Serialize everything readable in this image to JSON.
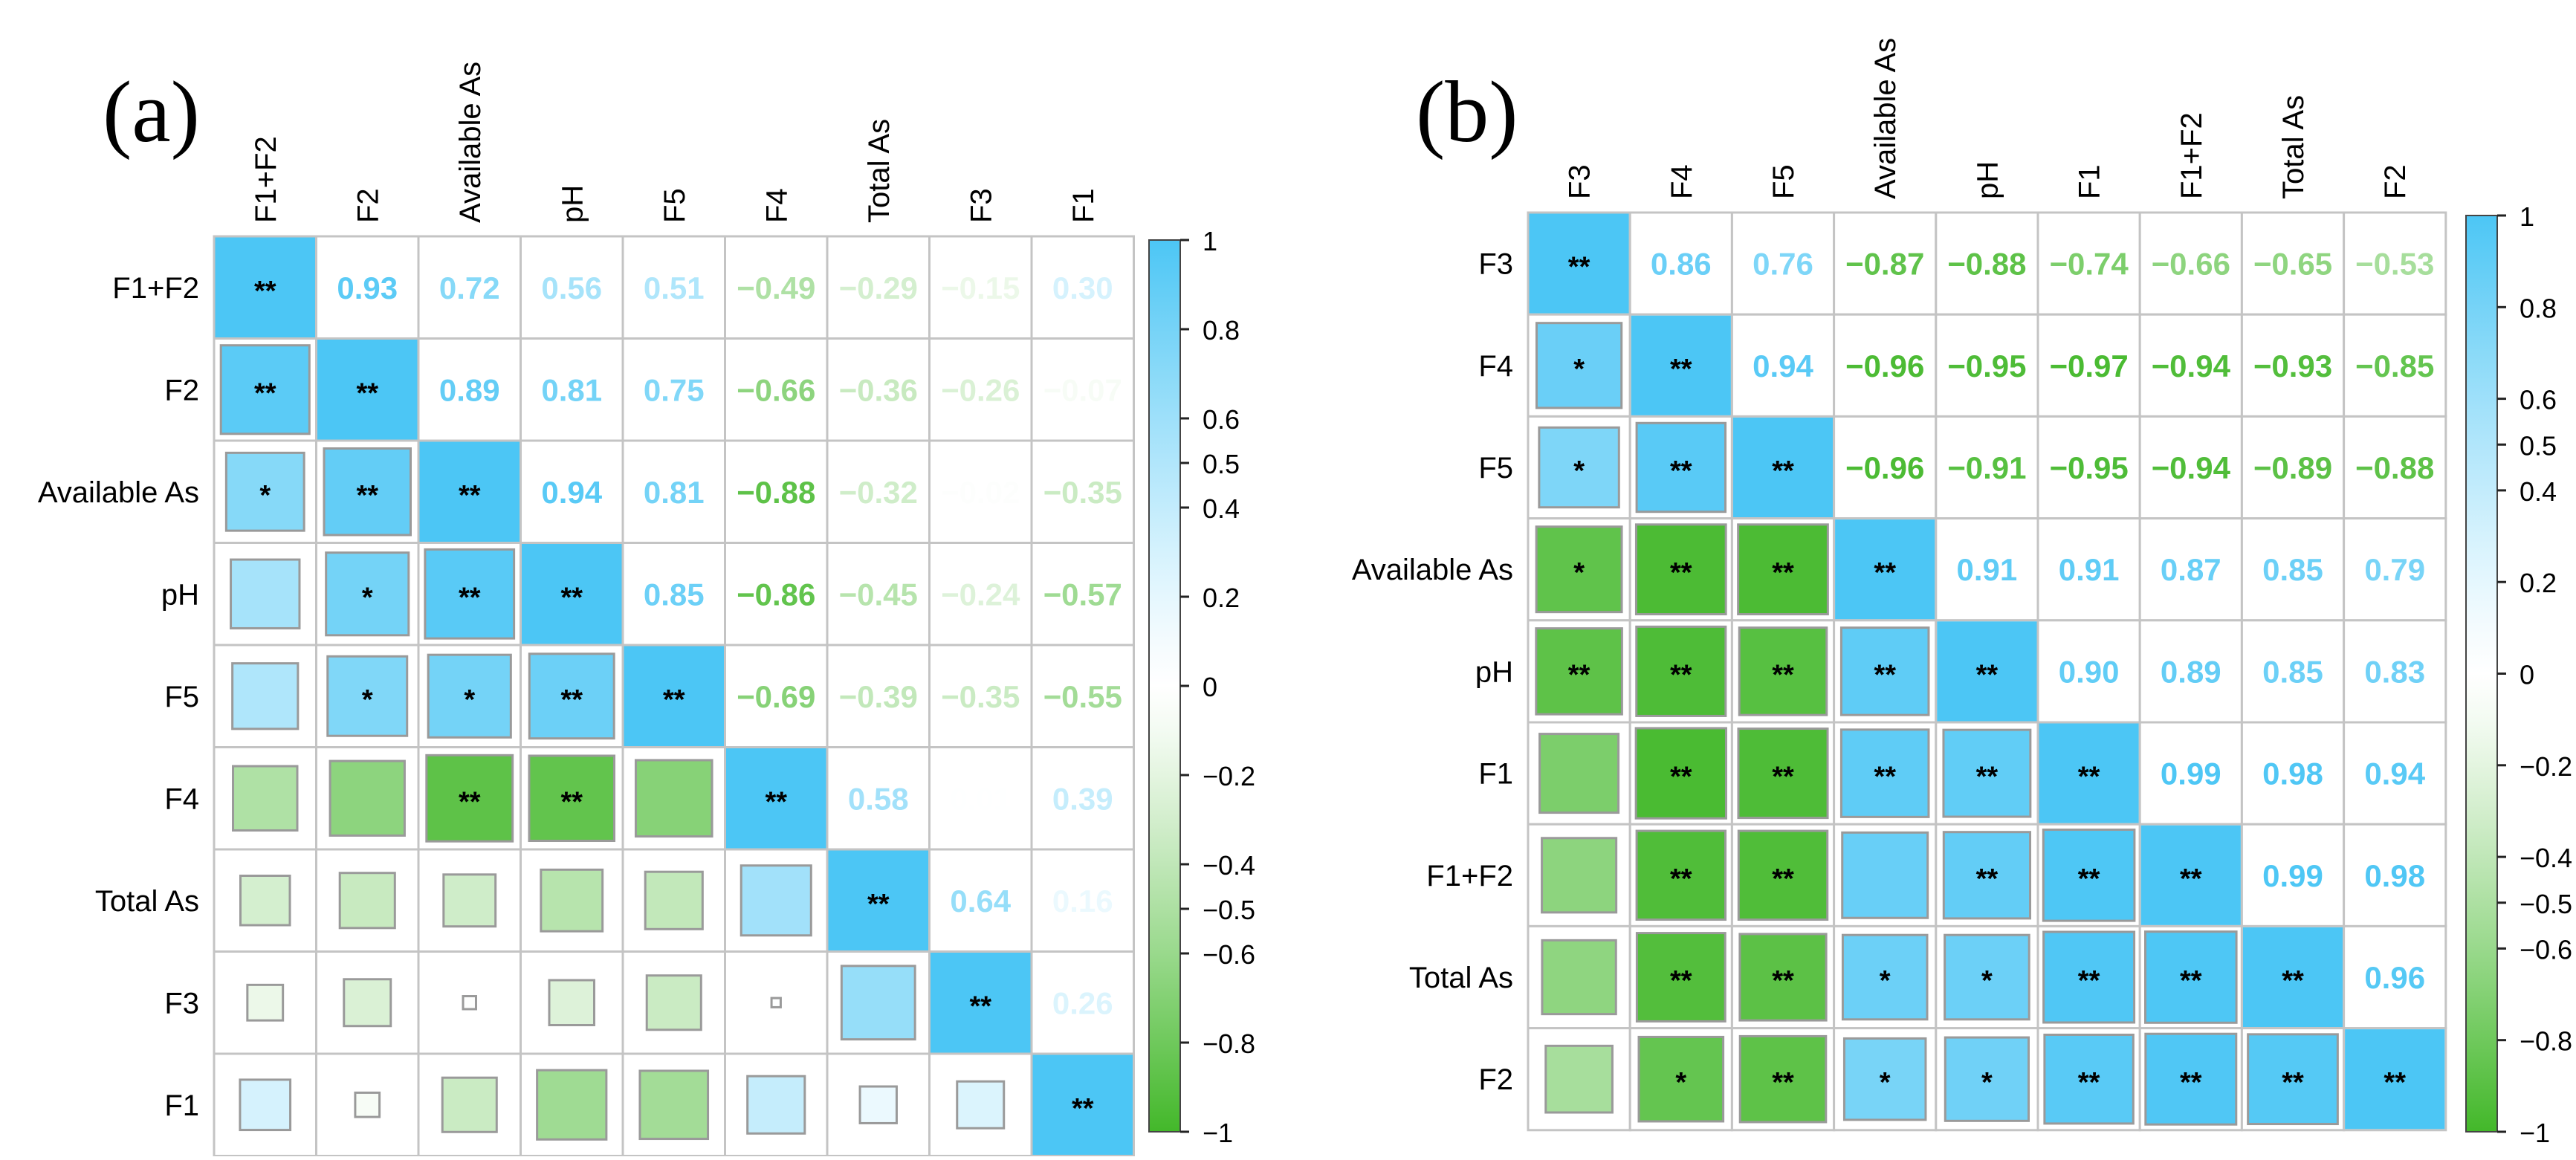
{
  "colors": {
    "positive": "#4cc6f5",
    "negative": "#43b82a",
    "gridline": "#c4c4c4",
    "square_border": "#9a9a9a",
    "label_text": "#000000"
  },
  "chart_data": [
    {
      "type": "heatmap",
      "panel_label": "(a)",
      "variables": [
        "F1+F2",
        "F2",
        "Available As",
        "pH",
        "F5",
        "F4",
        "Total As",
        "F3",
        "F1"
      ],
      "upper_triangle": "coefficient values",
      "lower_triangle": "squares sized by |r|, diagonal filled; asterisks mark significance",
      "matrix": [
        [
          1.0,
          0.93,
          0.72,
          0.56,
          0.51,
          -0.49,
          -0.29,
          -0.15,
          0.3
        ],
        [
          0.93,
          1.0,
          0.89,
          0.81,
          0.75,
          -0.66,
          -0.36,
          -0.26,
          -0.07
        ],
        [
          0.72,
          0.89,
          1.0,
          0.94,
          0.81,
          -0.88,
          -0.32,
          -0.02,
          -0.35
        ],
        [
          0.56,
          0.81,
          0.94,
          1.0,
          0.85,
          -0.86,
          -0.45,
          -0.24,
          -0.57
        ],
        [
          0.51,
          0.75,
          0.81,
          0.85,
          1.0,
          -0.69,
          -0.39,
          -0.35,
          -0.55
        ],
        [
          -0.49,
          -0.66,
          -0.88,
          -0.86,
          -0.69,
          1.0,
          0.58,
          0.01,
          0.39
        ],
        [
          -0.29,
          -0.36,
          -0.32,
          -0.45,
          -0.39,
          0.58,
          1.0,
          0.64,
          0.16
        ],
        [
          -0.15,
          -0.26,
          -0.02,
          -0.24,
          -0.35,
          0.01,
          0.64,
          1.0,
          0.26
        ],
        [
          0.3,
          -0.07,
          -0.35,
          -0.57,
          -0.55,
          0.39,
          0.16,
          0.26,
          1.0
        ]
      ],
      "significance": [
        [
          "**",
          "",
          "",
          "",
          "",
          "",
          "",
          "",
          ""
        ],
        [
          "**",
          "**",
          "",
          "",
          "",
          "",
          "",
          "",
          ""
        ],
        [
          "*",
          "**",
          "**",
          "",
          "",
          "",
          "",
          "",
          ""
        ],
        [
          "",
          "*",
          "**",
          "**",
          "",
          "",
          "",
          "",
          ""
        ],
        [
          "",
          "*",
          "*",
          "**",
          "**",
          "",
          "",
          "",
          ""
        ],
        [
          "",
          "",
          "**",
          "**",
          "",
          "**",
          "",
          "",
          ""
        ],
        [
          "",
          "",
          "",
          "",
          "",
          "",
          "**",
          "",
          ""
        ],
        [
          "",
          "",
          "",
          "",
          "",
          "",
          "",
          "**",
          ""
        ],
        [
          "",
          "",
          "",
          "",
          "",
          "",
          "",
          "",
          "**"
        ]
      ],
      "colorbar": {
        "range": [
          -1,
          1
        ],
        "ticks": [
          1,
          0.8,
          0.6,
          0.5,
          0.4,
          0.2,
          0,
          -0.2,
          -0.4,
          -0.5,
          -0.6,
          -0.8,
          -1
        ],
        "tick_labels": [
          "1",
          "0.8",
          "0.6",
          "0.5",
          "0.4",
          "0.2",
          "0",
          "−0.2",
          "−0.4",
          "−0.5",
          "−0.6",
          "−0.8",
          "−1"
        ]
      }
    },
    {
      "type": "heatmap",
      "panel_label": "(b)",
      "variables": [
        "F3",
        "F4",
        "F5",
        "Available As",
        "pH",
        "F1",
        "F1+F2",
        "Total As",
        "F2"
      ],
      "upper_triangle": "coefficient values",
      "lower_triangle": "squares sized by |r|, diagonal filled; asterisks mark significance",
      "matrix": [
        [
          1.0,
          0.86,
          0.76,
          -0.87,
          -0.88,
          -0.74,
          -0.66,
          -0.65,
          -0.53
        ],
        [
          0.86,
          1.0,
          0.94,
          -0.96,
          -0.95,
          -0.97,
          -0.94,
          -0.93,
          -0.85
        ],
        [
          0.76,
          0.94,
          1.0,
          -0.96,
          -0.91,
          -0.95,
          -0.94,
          -0.89,
          -0.88
        ],
        [
          -0.87,
          -0.96,
          -0.96,
          1.0,
          0.91,
          0.91,
          0.87,
          0.85,
          0.79
        ],
        [
          -0.88,
          -0.95,
          -0.91,
          0.91,
          1.0,
          0.9,
          0.89,
          0.85,
          0.83
        ],
        [
          -0.74,
          -0.97,
          -0.95,
          0.91,
          0.9,
          1.0,
          0.99,
          0.98,
          0.94
        ],
        [
          -0.66,
          -0.94,
          -0.94,
          0.87,
          0.89,
          0.99,
          1.0,
          0.99,
          0.98
        ],
        [
          -0.65,
          -0.93,
          -0.89,
          0.85,
          0.85,
          0.98,
          0.99,
          1.0,
          0.96
        ],
        [
          -0.53,
          -0.85,
          -0.88,
          0.79,
          0.83,
          0.94,
          0.98,
          0.96,
          1.0
        ]
      ],
      "significance": [
        [
          "**",
          "",
          "",
          "",
          "",
          "",
          "",
          "",
          ""
        ],
        [
          "*",
          "**",
          "",
          "",
          "",
          "",
          "",
          "",
          ""
        ],
        [
          "*",
          "**",
          "**",
          "",
          "",
          "",
          "",
          "",
          ""
        ],
        [
          "*",
          "**",
          "**",
          "**",
          "",
          "",
          "",
          "",
          ""
        ],
        [
          "**",
          "**",
          "**",
          "**",
          "**",
          "",
          "",
          "",
          ""
        ],
        [
          "",
          "**",
          "**",
          "**",
          "**",
          "**",
          "",
          "",
          ""
        ],
        [
          "",
          "**",
          "**",
          "",
          "**",
          "**",
          "**",
          "",
          ""
        ],
        [
          "",
          "**",
          "**",
          "*",
          "*",
          "**",
          "**",
          "**",
          ""
        ],
        [
          "",
          "*",
          "**",
          "*",
          "*",
          "**",
          "**",
          "**",
          "**"
        ]
      ],
      "colorbar": {
        "range": [
          -1,
          1
        ],
        "ticks": [
          1,
          0.8,
          0.6,
          0.5,
          0.4,
          0.2,
          0,
          -0.2,
          -0.4,
          -0.5,
          -0.6,
          -0.8,
          -1
        ],
        "tick_labels": [
          "1",
          "0.8",
          "0.6",
          "0.5",
          "0.4",
          "0.2",
          "0",
          "−0.2",
          "−0.4",
          "−0.5",
          "−0.6",
          "−0.8",
          "−1"
        ]
      }
    }
  ]
}
